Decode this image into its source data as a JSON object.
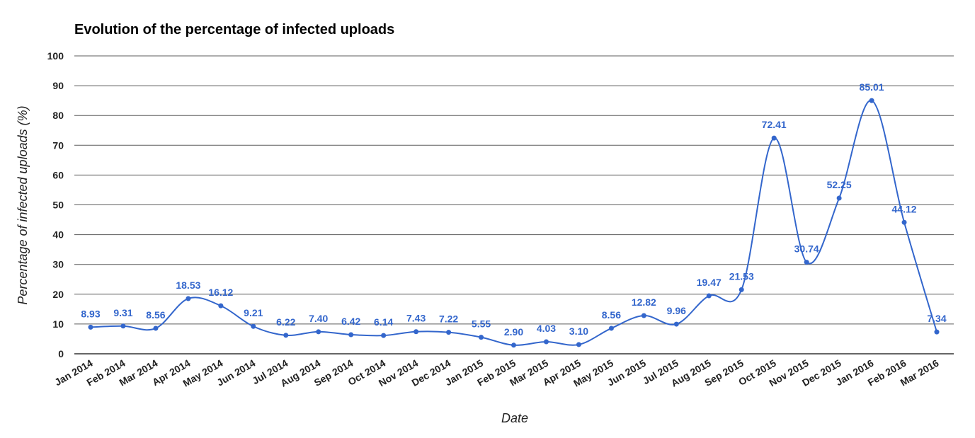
{
  "chart_data": {
    "type": "line",
    "title": "Evolution of the percentage of infected uploads",
    "xlabel": "Date",
    "ylabel": "Percentage of infected uploads (%)",
    "ylim": [
      0,
      100
    ],
    "yticks": [
      "0",
      "10",
      "20",
      "30",
      "40",
      "50",
      "60",
      "70",
      "80",
      "90",
      "100"
    ],
    "grid": true,
    "categories": [
      "Jan 2014",
      "Feb 2014",
      "Mar 2014",
      "Apr 2014",
      "May 2014",
      "Jun 2014",
      "Jul 2014",
      "Aug 2014",
      "Sep 2014",
      "Oct 2014",
      "Nov 2014",
      "Dec 2014",
      "Jan 2015",
      "Feb 2015",
      "Mar 2015",
      "Apr 2015",
      "May 2015",
      "Jun 2015",
      "Jul 2015",
      "Aug 2015",
      "Sep 2015",
      "Oct 2015",
      "Nov 2015",
      "Dec 2015",
      "Jan 2016",
      "Feb 2016",
      "Mar 2016"
    ],
    "series": [
      {
        "color": "#3366cc",
        "values": [
          8.93,
          9.31,
          8.56,
          18.53,
          16.12,
          9.21,
          6.22,
          7.4,
          6.42,
          6.14,
          7.43,
          7.22,
          5.55,
          2.9,
          4.03,
          3.1,
          8.56,
          12.82,
          9.96,
          19.47,
          21.53,
          72.41,
          30.74,
          52.25,
          85.01,
          44.12,
          7.34
        ],
        "labels": [
          "8.93",
          "9.31",
          "8.56",
          "18.53",
          "16.12",
          "9.21",
          "6.22",
          "7.40",
          "6.42",
          "6.14",
          "7.43",
          "7.22",
          "5.55",
          "2.90",
          "4.03",
          "3.10",
          "8.56",
          "12.82",
          "9.96",
          "19.47",
          "21.53",
          "72.41",
          "30.74",
          "52.25",
          "85.01",
          "44.12",
          "7.34"
        ]
      }
    ]
  }
}
